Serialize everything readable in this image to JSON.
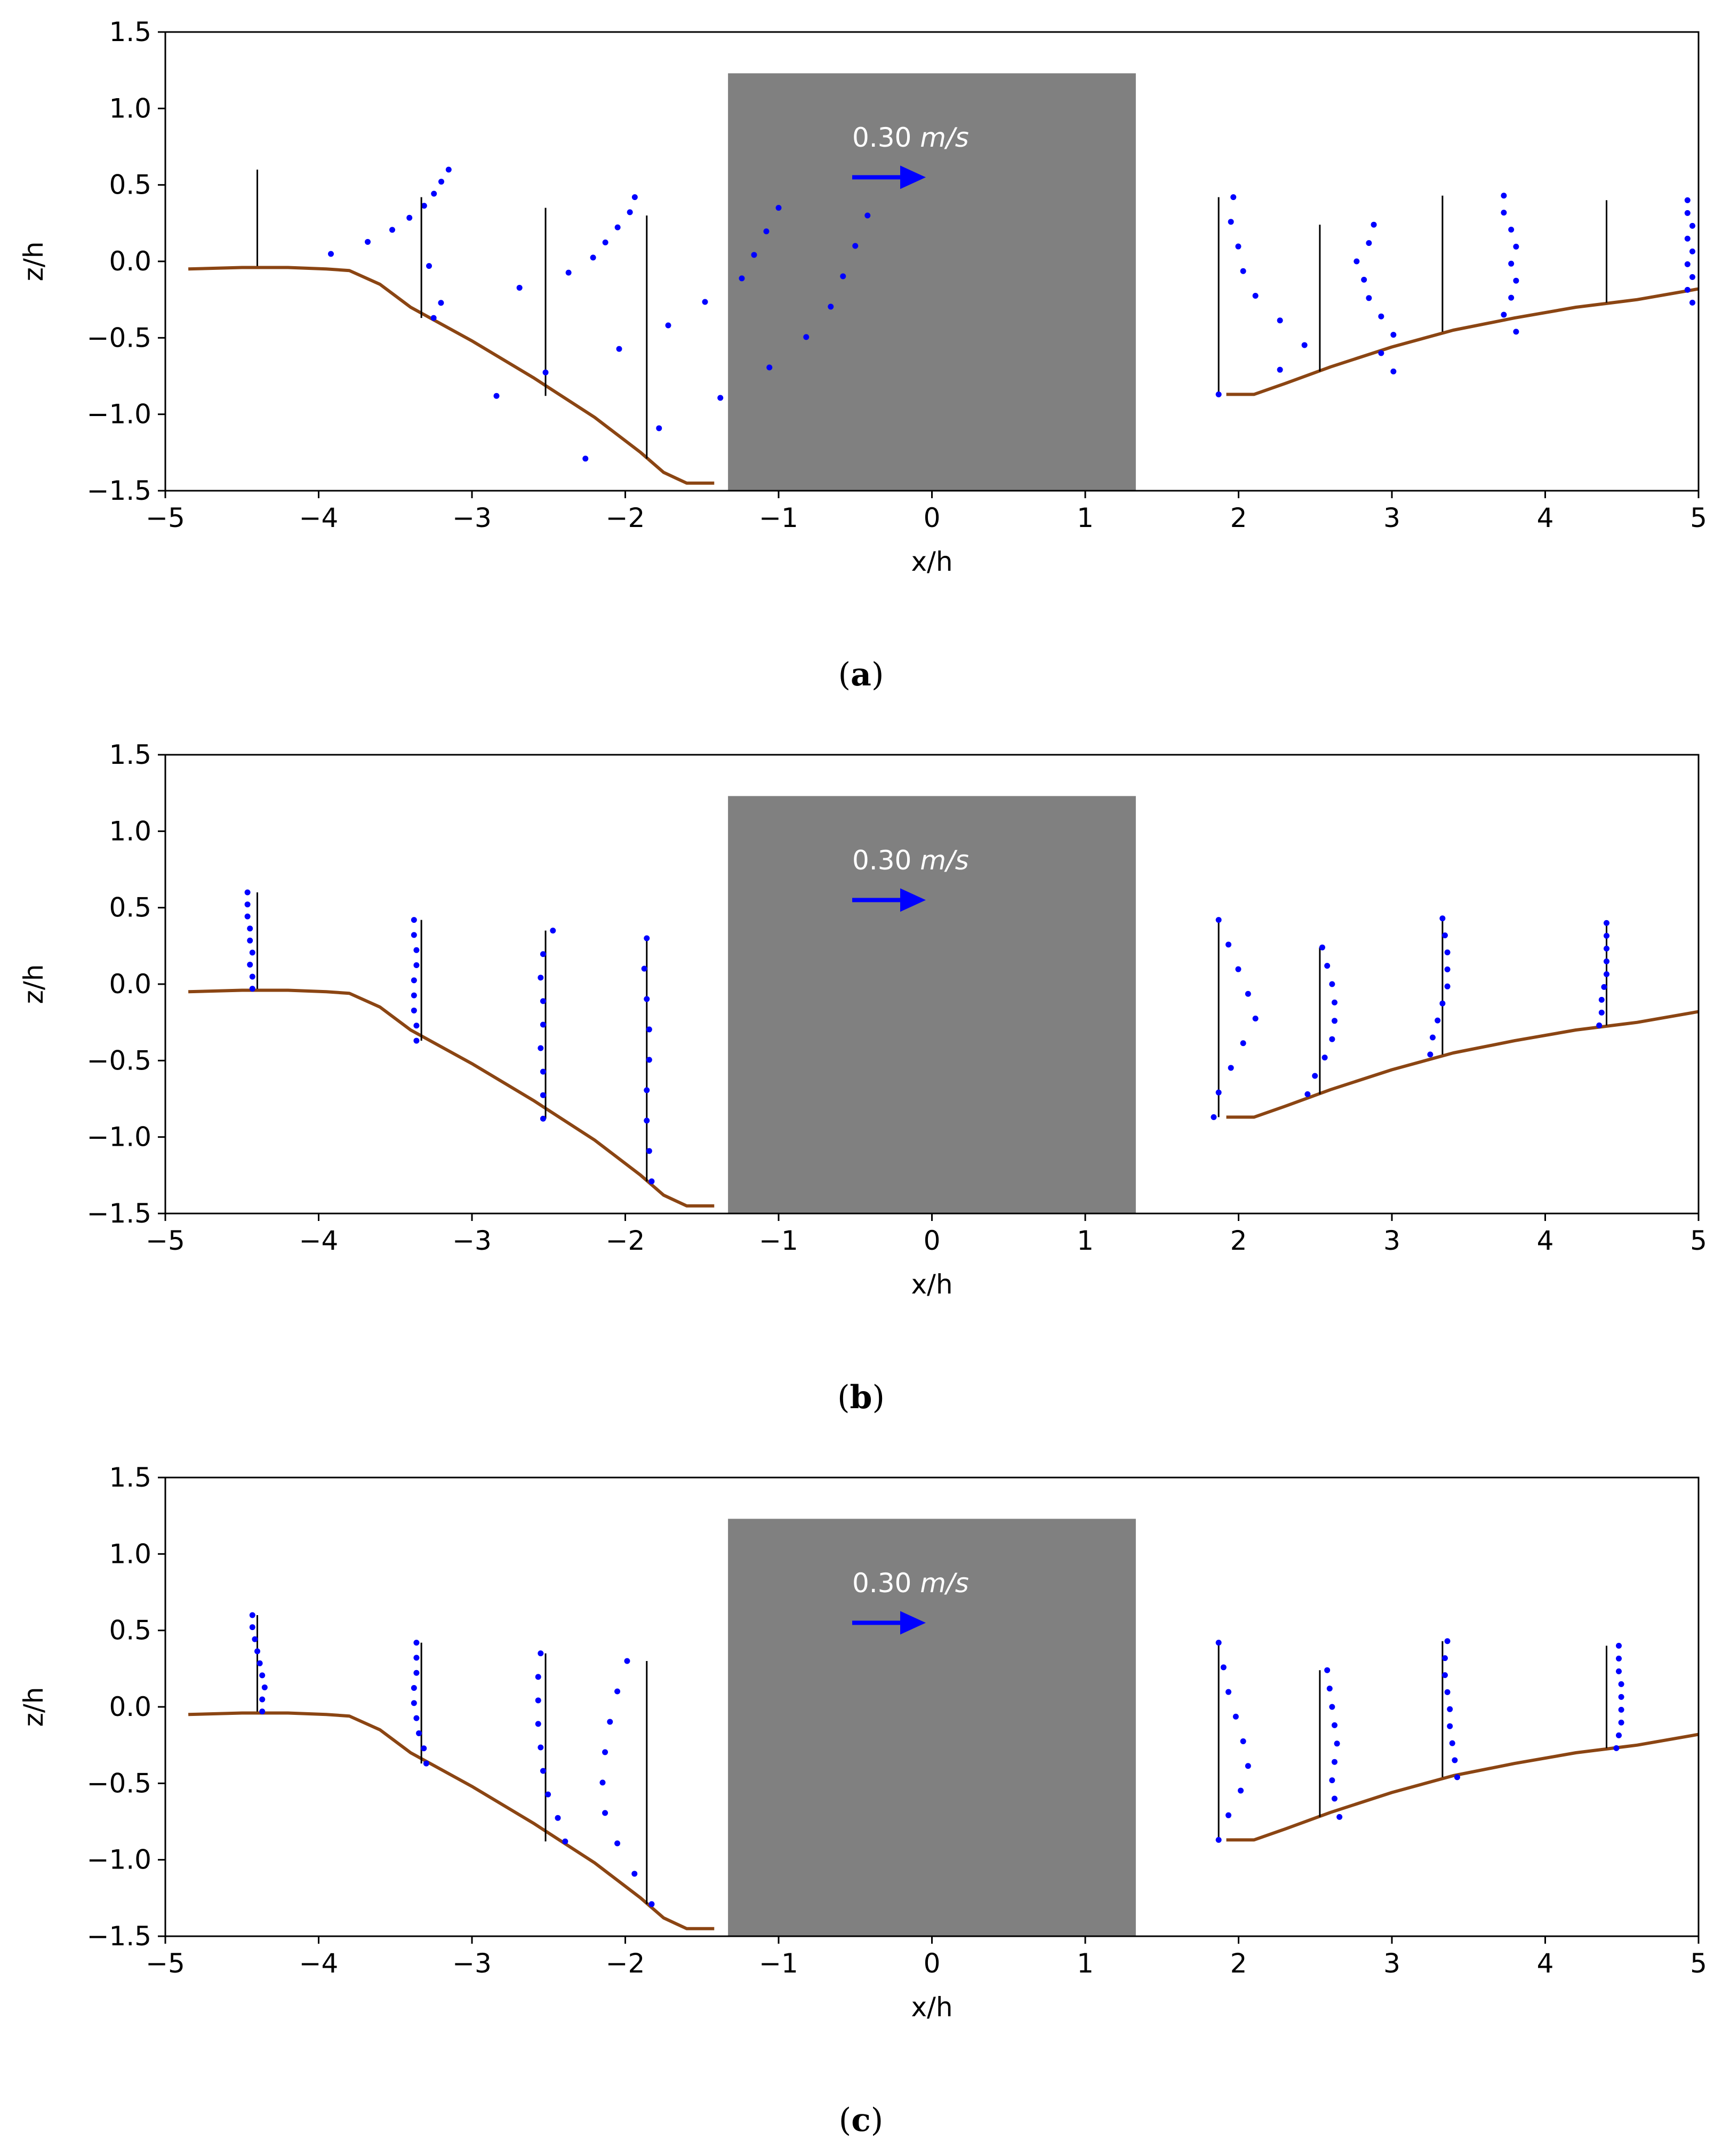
{
  "figure": {
    "colors": {
      "bed": "#8B4513",
      "profile": "#0000FF",
      "structure": "#808080",
      "axis": "#000000",
      "arrow": "#0000FF",
      "arrow_label": "#FFFFFF"
    },
    "scale_label": "0.30 m/s",
    "scale_label_parts": {
      "value": "0.30",
      "unit": "m/s"
    }
  },
  "chart_data": [
    {
      "panel": "a",
      "caption_letter": "a",
      "type": "scatter",
      "xlabel": "x/h",
      "ylabel": "z/h",
      "xlim": [
        -5,
        5
      ],
      "ylim": [
        -1.5,
        1.5
      ],
      "xticks": [
        "−5",
        "−4",
        "−3",
        "−2",
        "−1",
        "0",
        "1",
        "2",
        "3",
        "4",
        "5"
      ],
      "yticks": [
        "−1.5",
        "−1.0",
        "−0.5",
        "0.0",
        "0.5",
        "1.0",
        "1.5"
      ],
      "profiles": [
        {
          "x0": -4.4,
          "zbed": -0.03,
          "ztop": 0.6,
          "u": [
            0.7,
            0.3,
            0.45,
            0.55,
            0.62,
            0.68,
            0.72,
            0.75,
            0.78
          ]
        },
        {
          "x0": -3.33,
          "zbed": -0.37,
          "ztop": 0.42,
          "u": [
            0.05,
            0.08,
            0.4,
            0.6,
            0.7,
            0.75,
            0.8,
            0.85,
            0.87
          ]
        },
        {
          "x0": -2.52,
          "zbed": -0.88,
          "ztop": 0.35,
          "u": [
            -0.2,
            0.0,
            0.3,
            0.5,
            0.65,
            0.8,
            0.85,
            0.9,
            0.95
          ]
        },
        {
          "x0": -1.86,
          "zbed": -1.29,
          "ztop": 0.3,
          "u": [
            -0.25,
            0.05,
            0.3,
            0.5,
            0.65,
            0.75,
            0.8,
            0.85,
            0.9
          ]
        },
        {
          "x0": 1.87,
          "zbed": -0.87,
          "ztop": 0.42,
          "u": [
            0.0,
            0.25,
            0.35,
            0.25,
            0.15,
            0.1,
            0.08,
            0.05,
            0.06
          ]
        },
        {
          "x0": 2.53,
          "zbed": -0.72,
          "ztop": 0.24,
          "u": [
            0.3,
            0.25,
            0.3,
            0.25,
            0.2,
            0.18,
            0.15,
            0.2,
            0.22
          ]
        },
        {
          "x0": 3.33,
          "zbed": -0.46,
          "ztop": 0.43,
          "u": [
            0.3,
            0.25,
            0.28,
            0.3,
            0.28,
            0.3,
            0.28,
            0.25,
            0.25
          ]
        },
        {
          "x0": 4.4,
          "zbed": -0.27,
          "ztop": 0.4,
          "u": [
            0.35,
            0.33,
            0.35,
            0.33,
            0.35,
            0.33,
            0.35,
            0.33,
            0.33
          ]
        }
      ]
    },
    {
      "panel": "b",
      "caption_letter": "b",
      "type": "scatter",
      "xlabel": "x/h",
      "ylabel": "z/h",
      "xlim": [
        -5,
        5
      ],
      "ylim": [
        -1.5,
        1.5
      ],
      "xticks": [
        "−5",
        "−4",
        "−3",
        "−2",
        "−1",
        "0",
        "1",
        "2",
        "3",
        "4",
        "5"
      ],
      "yticks": [
        "−1.5",
        "−1.0",
        "−0.5",
        "0.0",
        "0.5",
        "1.0",
        "1.5"
      ],
      "profiles": [
        {
          "x0": -4.4,
          "zbed": -0.03,
          "ztop": 0.6,
          "u": [
            -0.02,
            -0.02,
            -0.03,
            -0.02,
            -0.03,
            -0.03,
            -0.04,
            -0.04,
            -0.04
          ]
        },
        {
          "x0": -3.33,
          "zbed": -0.37,
          "ztop": 0.42,
          "u": [
            -0.02,
            -0.02,
            -0.03,
            -0.03,
            -0.03,
            -0.02,
            -0.02,
            -0.03,
            -0.03
          ]
        },
        {
          "x0": -2.52,
          "zbed": -0.88,
          "ztop": 0.35,
          "u": [
            -0.01,
            -0.01,
            -0.01,
            -0.02,
            -0.01,
            -0.01,
            -0.02,
            -0.01,
            0.03
          ]
        },
        {
          "x0": -1.86,
          "zbed": -1.29,
          "ztop": 0.3,
          "u": [
            0.02,
            0.01,
            0.0,
            0.0,
            0.01,
            0.01,
            0.0,
            -0.01,
            0.0
          ]
        },
        {
          "x0": 1.87,
          "zbed": -0.87,
          "ztop": 0.42,
          "u": [
            -0.02,
            0.0,
            0.05,
            0.1,
            0.15,
            0.12,
            0.08,
            0.04,
            0.0
          ]
        },
        {
          "x0": 2.53,
          "zbed": -0.72,
          "ztop": 0.24,
          "u": [
            -0.05,
            -0.02,
            0.02,
            0.05,
            0.06,
            0.06,
            0.05,
            0.03,
            0.01
          ]
        },
        {
          "x0": 3.33,
          "zbed": -0.46,
          "ztop": 0.43,
          "u": [
            -0.05,
            -0.04,
            -0.02,
            0.0,
            0.02,
            0.02,
            0.02,
            0.01,
            0.0
          ]
        },
        {
          "x0": 4.4,
          "zbed": -0.27,
          "ztop": 0.4,
          "u": [
            -0.03,
            -0.02,
            -0.02,
            -0.01,
            0.0,
            0.0,
            0.0,
            0.0,
            0.0
          ]
        }
      ]
    },
    {
      "panel": "c",
      "caption_letter": "c",
      "type": "scatter",
      "xlabel": "x/h",
      "ylabel": "z/h",
      "xlim": [
        -5,
        5
      ],
      "ylim": [
        -1.5,
        1.5
      ],
      "xticks": [
        "−5",
        "−4",
        "−3",
        "−2",
        "−1",
        "0",
        "1",
        "2",
        "3",
        "4",
        "5"
      ],
      "yticks": [
        "−1.5",
        "−1.0",
        "−0.5",
        "0.0",
        "0.5",
        "1.0",
        "1.5"
      ],
      "profiles": [
        {
          "x0": -4.4,
          "zbed": -0.03,
          "ztop": 0.6,
          "u": [
            0.02,
            0.02,
            0.03,
            0.02,
            0.01,
            0.0,
            -0.01,
            -0.02,
            -0.02
          ]
        },
        {
          "x0": -3.33,
          "zbed": -0.37,
          "ztop": 0.42,
          "u": [
            0.02,
            0.01,
            -0.01,
            -0.02,
            -0.03,
            -0.03,
            -0.02,
            -0.02,
            -0.02
          ]
        },
        {
          "x0": -2.52,
          "zbed": -0.88,
          "ztop": 0.35,
          "u": [
            0.08,
            0.05,
            0.01,
            -0.01,
            -0.02,
            -0.03,
            -0.03,
            -0.03,
            -0.02
          ]
        },
        {
          "x0": -1.86,
          "zbed": -1.29,
          "ztop": 0.3,
          "u": [
            0.02,
            -0.05,
            -0.12,
            -0.17,
            -0.18,
            -0.17,
            -0.15,
            -0.12,
            -0.08
          ]
        },
        {
          "x0": 1.87,
          "zbed": -0.87,
          "ztop": 0.42,
          "u": [
            0.0,
            0.04,
            0.09,
            0.12,
            0.1,
            0.07,
            0.04,
            0.02,
            0.0
          ]
        },
        {
          "x0": 2.53,
          "zbed": -0.72,
          "ztop": 0.24,
          "u": [
            0.08,
            0.06,
            0.05,
            0.06,
            0.07,
            0.06,
            0.05,
            0.04,
            0.03
          ]
        },
        {
          "x0": 3.33,
          "zbed": -0.46,
          "ztop": 0.43,
          "u": [
            0.06,
            0.05,
            0.04,
            0.03,
            0.03,
            0.02,
            0.01,
            0.01,
            0.02
          ]
        },
        {
          "x0": 4.4,
          "zbed": -0.27,
          "ztop": 0.4,
          "u": [
            0.04,
            0.05,
            0.06,
            0.06,
            0.06,
            0.06,
            0.05,
            0.05,
            0.05
          ]
        }
      ]
    }
  ],
  "bed": {
    "upstream": [
      [
        -4.85,
        -0.05
      ],
      [
        -4.5,
        -0.04
      ],
      [
        -4.2,
        -0.04
      ],
      [
        -3.95,
        -0.05
      ],
      [
        -3.8,
        -0.06
      ],
      [
        -3.6,
        -0.15
      ],
      [
        -3.4,
        -0.3
      ],
      [
        -3.0,
        -0.52
      ],
      [
        -2.6,
        -0.76
      ],
      [
        -2.2,
        -1.02
      ],
      [
        -1.9,
        -1.25
      ],
      [
        -1.75,
        -1.38
      ],
      [
        -1.6,
        -1.45
      ],
      [
        -1.42,
        -1.45
      ]
    ],
    "downstream": [
      [
        1.92,
        -0.87
      ],
      [
        2.1,
        -0.87
      ],
      [
        2.3,
        -0.8
      ],
      [
        2.6,
        -0.69
      ],
      [
        3.0,
        -0.56
      ],
      [
        3.4,
        -0.45
      ],
      [
        3.8,
        -0.37
      ],
      [
        4.2,
        -0.3
      ],
      [
        4.6,
        -0.25
      ],
      [
        5.0,
        -0.18
      ]
    ]
  },
  "structure": {
    "x_range": [
      -1.33,
      1.33
    ],
    "z_range": [
      -1.5,
      1.23
    ]
  },
  "scale_arrow": {
    "x_start": -0.52,
    "z": 0.55,
    "length_ms": 0.3,
    "length_xh": 0.48
  },
  "profile_scale": {
    "xh_per_unit": 1.6
  }
}
